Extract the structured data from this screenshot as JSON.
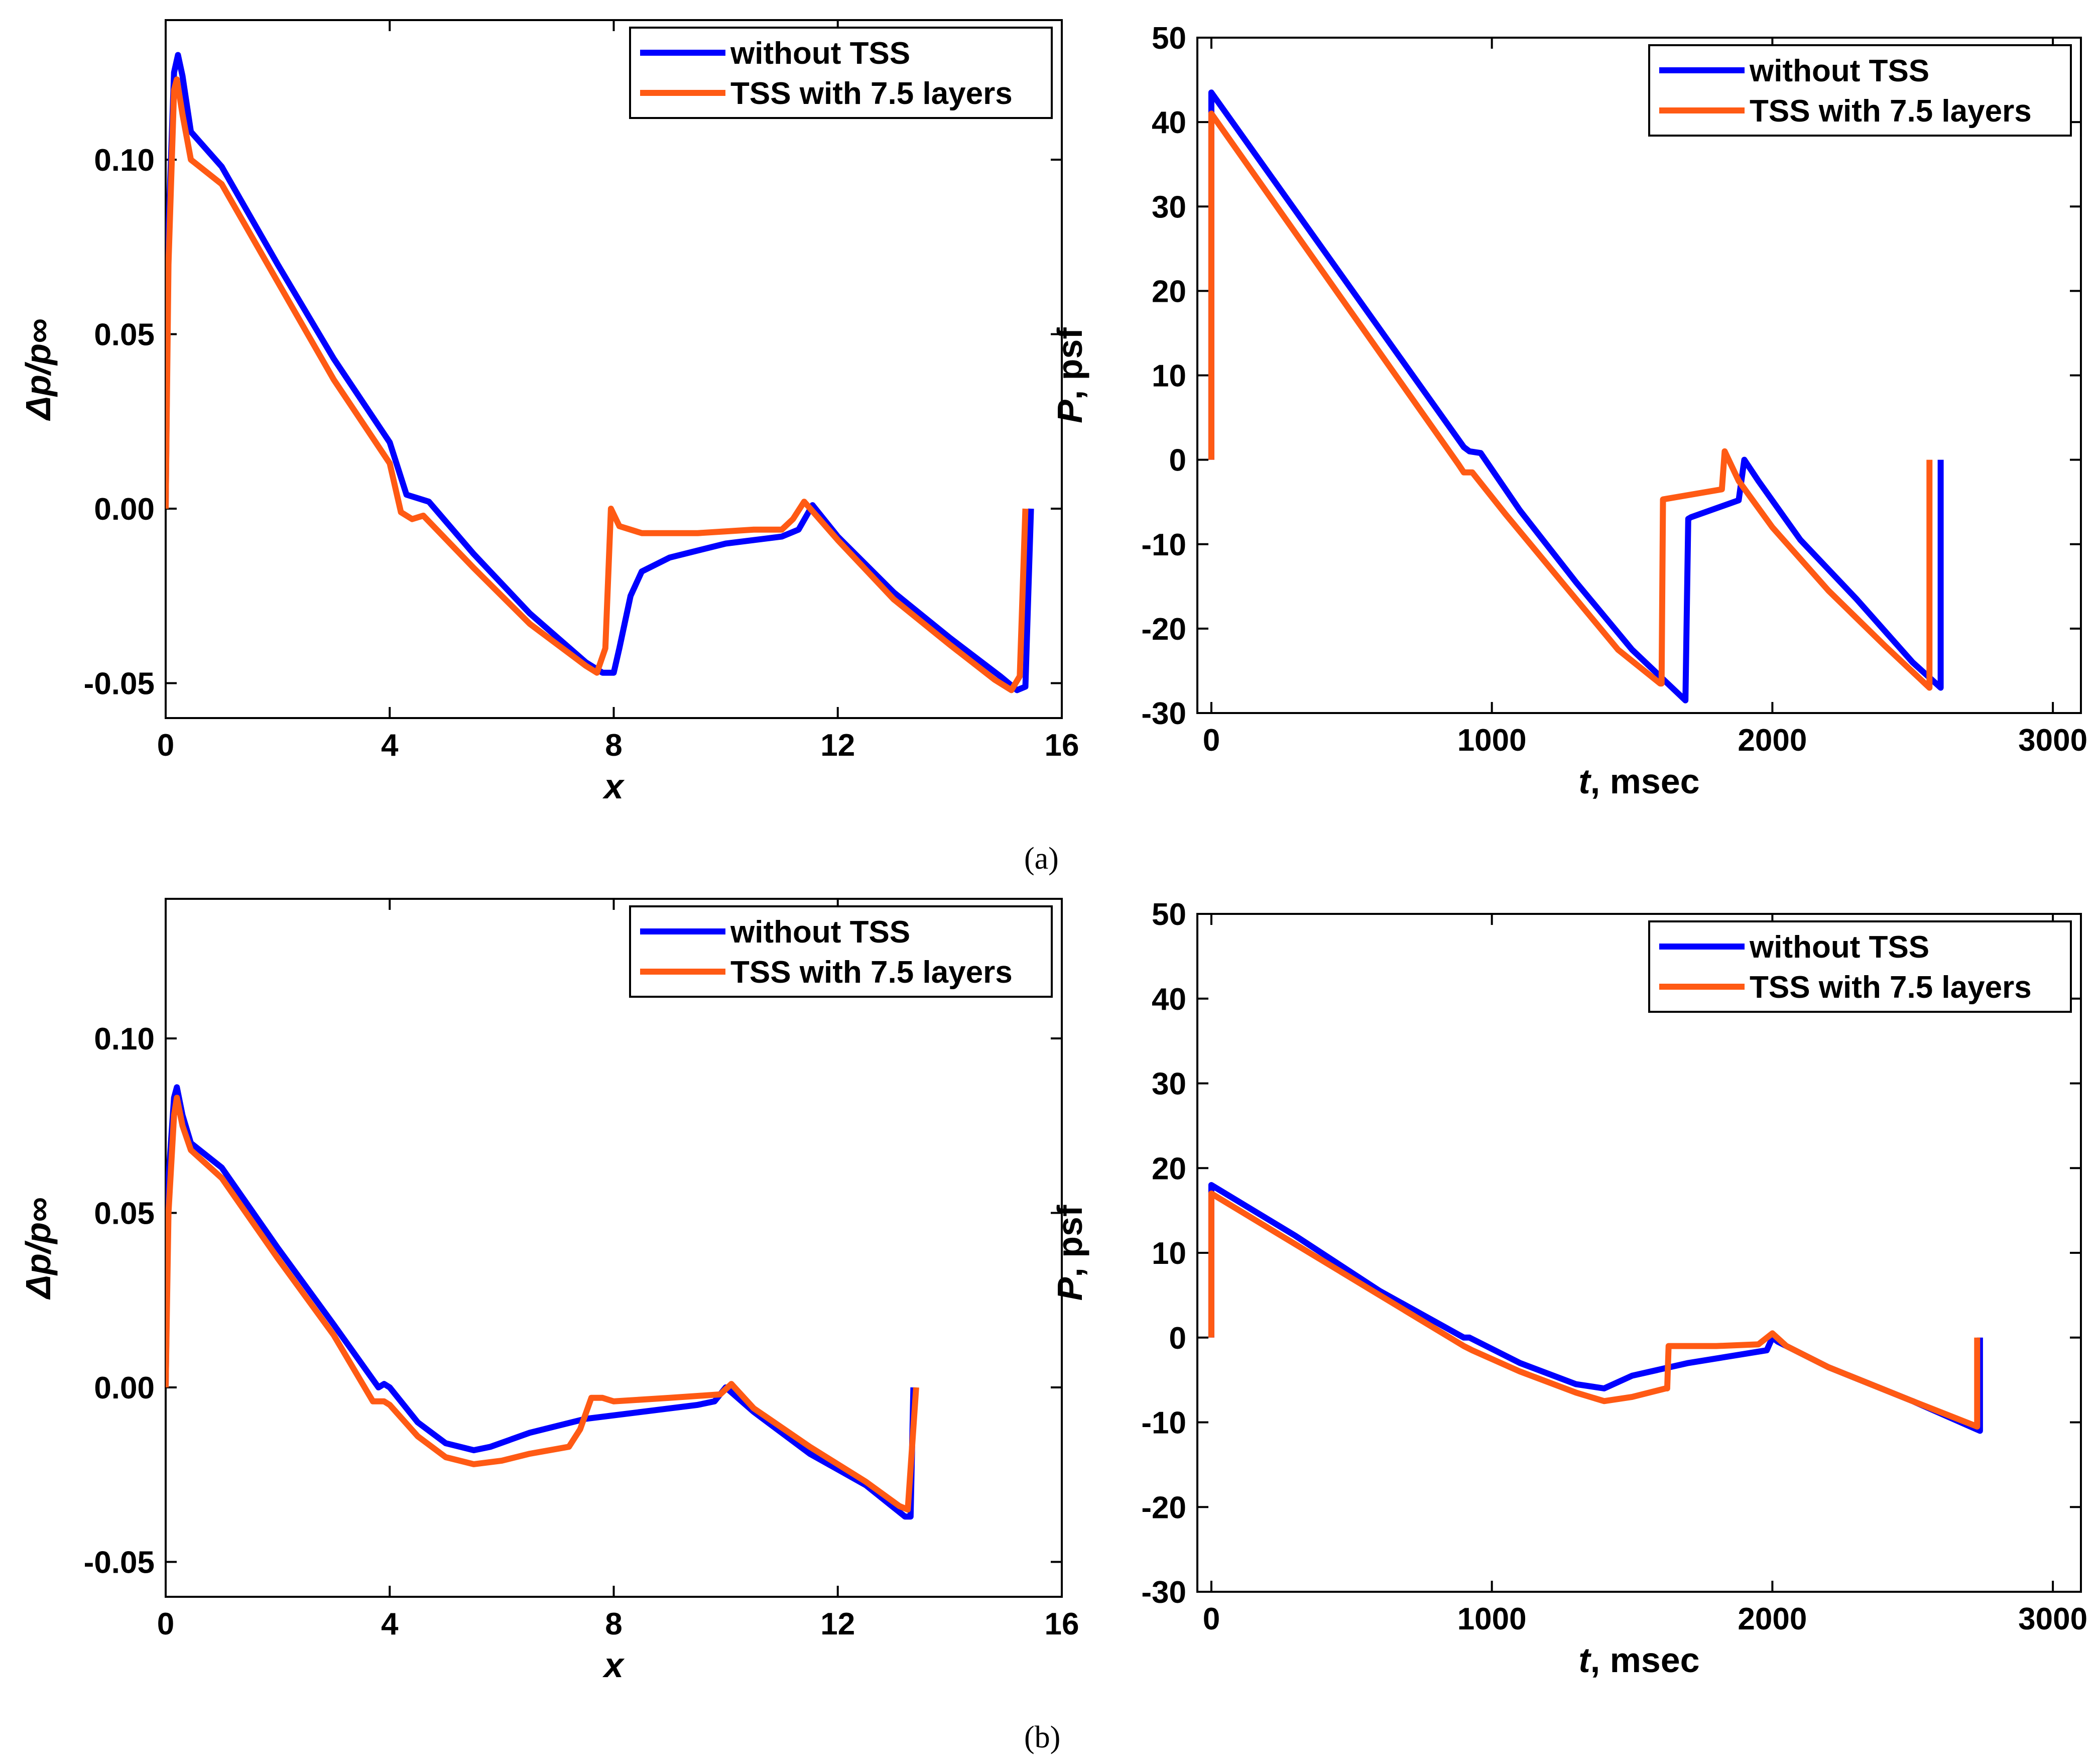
{
  "figure": {
    "panel_labels": [
      "(a)",
      "(b)"
    ]
  },
  "colors": {
    "series_1": "#0000FF",
    "series_2": "#FF5A14",
    "axis": "#000000",
    "background": "#FFFFFF"
  },
  "chart_data": [
    {
      "type": "line",
      "panel": "(a)",
      "xlabel": "x",
      "ylabel": "Δp/p∞",
      "xlim": [
        0,
        16
      ],
      "ylim": [
        -0.06,
        0.14
      ],
      "xticks": [
        0,
        4,
        8,
        12,
        16
      ],
      "yticks": [
        -0.05,
        0.0,
        0.05,
        0.1
      ],
      "xtick_labels": [
        "0",
        "4",
        "8",
        "12",
        "16"
      ],
      "ytick_labels": [
        "-0.05",
        "0.00",
        "0.05",
        "0.10"
      ],
      "grid": false,
      "legend_position": "top-right",
      "series": [
        {
          "name": "without TSS",
          "x": [
            0,
            0.05,
            0.15,
            0.22,
            0.3,
            0.45,
            1.0,
            2.0,
            3.0,
            4.0,
            4.3,
            4.5,
            4.7,
            5.5,
            6.5,
            7.5,
            7.8,
            8.0,
            8.1,
            8.3,
            8.5,
            9.0,
            10.0,
            11.0,
            11.3,
            11.55,
            12.0,
            13.0,
            14.0,
            14.9,
            15.2,
            15.35,
            15.45
          ],
          "y": [
            0,
            0.08,
            0.125,
            0.13,
            0.124,
            0.108,
            0.098,
            0.07,
            0.043,
            0.019,
            0.004,
            0.003,
            0.002,
            -0.013,
            -0.03,
            -0.044,
            -0.047,
            -0.047,
            -0.04,
            -0.025,
            -0.018,
            -0.014,
            -0.01,
            -0.008,
            -0.006,
            0.001,
            -0.008,
            -0.024,
            -0.037,
            -0.048,
            -0.052,
            -0.051,
            0
          ]
        },
        {
          "name": "TSS with 7.5 layers",
          "x": [
            0,
            0.05,
            0.15,
            0.2,
            0.3,
            0.45,
            1.0,
            2.0,
            3.0,
            4.0,
            4.2,
            4.4,
            4.6,
            5.5,
            6.5,
            7.5,
            7.7,
            7.85,
            7.95,
            8.1,
            8.5,
            9.5,
            10.5,
            11.0,
            11.2,
            11.4,
            12.0,
            13.0,
            14.0,
            14.8,
            15.1,
            15.25,
            15.35
          ],
          "y": [
            0,
            0.07,
            0.12,
            0.123,
            0.113,
            0.1,
            0.093,
            0.065,
            0.037,
            0.013,
            -0.001,
            -0.003,
            -0.002,
            -0.017,
            -0.033,
            -0.045,
            -0.047,
            -0.04,
            0,
            -0.005,
            -0.007,
            -0.007,
            -0.006,
            -0.006,
            -0.003,
            0.002,
            -0.009,
            -0.026,
            -0.039,
            -0.049,
            -0.052,
            -0.048,
            0
          ]
        }
      ]
    },
    {
      "type": "line",
      "panel": "(a)",
      "xlabel": "t, msec",
      "ylabel": "P, psf",
      "xlim": [
        -50,
        3100
      ],
      "ylim": [
        -30,
        50
      ],
      "xticks": [
        0,
        1000,
        2000,
        3000
      ],
      "yticks": [
        -30,
        -20,
        -10,
        0,
        10,
        20,
        30,
        40,
        50
      ],
      "xtick_labels": [
        "0",
        "1000",
        "2000",
        "3000"
      ],
      "ytick_labels": [
        "-30",
        "-20",
        "-10",
        "0",
        "10",
        "20",
        "30",
        "40",
        "50"
      ],
      "grid": false,
      "legend_position": "top-right",
      "series": [
        {
          "name": "without TSS",
          "x": [
            0,
            0,
            900,
            920,
            960,
            1100,
            1300,
            1500,
            1690,
            1700,
            1710,
            1880,
            1900,
            1950,
            2100,
            2300,
            2500,
            2600,
            2600
          ],
          "y": [
            0,
            43.5,
            1.5,
            1,
            0.8,
            -6,
            -14.5,
            -22.5,
            -28.5,
            -7,
            -6.8,
            -4.8,
            0,
            -2.5,
            -9.5,
            -16.5,
            -24,
            -27,
            0
          ]
        },
        {
          "name": "TSS with 7.5 layers",
          "x": [
            0,
            0,
            880,
            900,
            930,
            1050,
            1250,
            1450,
            1600,
            1605,
            1610,
            1820,
            1830,
            1880,
            2000,
            2200,
            2400,
            2560,
            2560
          ],
          "y": [
            0,
            41,
            -0.5,
            -1.5,
            -1.5,
            -6.5,
            -14.5,
            -22.5,
            -26.5,
            -26.5,
            -4.7,
            -3.5,
            1,
            -2.5,
            -8,
            -15.5,
            -22,
            -27,
            0
          ]
        }
      ]
    },
    {
      "type": "line",
      "panel": "(b)",
      "xlabel": "x",
      "ylabel": "Δp/p∞",
      "xlim": [
        0,
        16
      ],
      "ylim": [
        -0.06,
        0.14
      ],
      "xticks": [
        0,
        4,
        8,
        12,
        16
      ],
      "yticks": [
        -0.05,
        0.0,
        0.05,
        0.1
      ],
      "xtick_labels": [
        "0",
        "4",
        "8",
        "12",
        "16"
      ],
      "ytick_labels": [
        "-0.05",
        "0.00",
        "0.05",
        "0.10"
      ],
      "grid": false,
      "legend_position": "top-right",
      "series": [
        {
          "name": "without TSS",
          "x": [
            0,
            0.05,
            0.15,
            0.2,
            0.3,
            0.45,
            1.0,
            2.0,
            3.0,
            3.8,
            3.9,
            4.0,
            4.5,
            5.0,
            5.5,
            5.8,
            6.5,
            7.5,
            8.5,
            9.5,
            9.8,
            10.0,
            10.5,
            11.5,
            12.5,
            13.2,
            13.3,
            13.35
          ],
          "y": [
            0,
            0.06,
            0.083,
            0.086,
            0.078,
            0.07,
            0.063,
            0.04,
            0.018,
            0.0,
            0.001,
            0.0,
            -0.01,
            -0.016,
            -0.018,
            -0.017,
            -0.013,
            -0.009,
            -0.007,
            -0.005,
            -0.004,
            0,
            -0.007,
            -0.019,
            -0.028,
            -0.037,
            -0.037,
            0
          ]
        },
        {
          "name": "TSS with 7.5 layers",
          "x": [
            0,
            0.05,
            0.15,
            0.2,
            0.3,
            0.45,
            1.0,
            2.0,
            3.0,
            3.7,
            3.9,
            4.0,
            4.5,
            5.0,
            5.5,
            6.0,
            6.5,
            7.2,
            7.4,
            7.6,
            7.8,
            8.0,
            9.0,
            9.9,
            10.1,
            10.5,
            11.5,
            12.5,
            13.1,
            13.25,
            13.4
          ],
          "y": [
            0,
            0.05,
            0.078,
            0.083,
            0.075,
            0.068,
            0.06,
            0.037,
            0.015,
            -0.004,
            -0.004,
            -0.005,
            -0.014,
            -0.02,
            -0.022,
            -0.021,
            -0.019,
            -0.017,
            -0.012,
            -0.003,
            -0.003,
            -0.004,
            -0.003,
            -0.002,
            0.001,
            -0.006,
            -0.017,
            -0.027,
            -0.034,
            -0.035,
            0
          ]
        }
      ]
    },
    {
      "type": "line",
      "panel": "(b)",
      "xlabel": "t, msec",
      "ylabel": "P, psf",
      "xlim": [
        -50,
        3100
      ],
      "ylim": [
        -30,
        50
      ],
      "xticks": [
        0,
        1000,
        2000,
        3000
      ],
      "yticks": [
        -30,
        -20,
        -10,
        0,
        10,
        20,
        30,
        40,
        50
      ],
      "xtick_labels": [
        "0",
        "1000",
        "2000",
        "3000"
      ],
      "ytick_labels": [
        "-30",
        "-20",
        "-10",
        "0",
        "10",
        "20",
        "30",
        "40",
        "50"
      ],
      "grid": false,
      "legend_position": "top-right",
      "series": [
        {
          "name": "without TSS",
          "x": [
            0,
            0,
            300,
            600,
            900,
            920,
            950,
            1100,
            1300,
            1400,
            1500,
            1700,
            1980,
            2000,
            2020,
            2200,
            2500,
            2740,
            2740
          ],
          "y": [
            0,
            18,
            12,
            5.5,
            0,
            0,
            -0.5,
            -3,
            -5.5,
            -6,
            -4.5,
            -3,
            -1.5,
            0,
            -0.5,
            -3.5,
            -7.5,
            -11,
            0
          ]
        },
        {
          "name": "TSS with 7.5 layers",
          "x": [
            0,
            0,
            300,
            600,
            900,
            930,
            1100,
            1300,
            1400,
            1500,
            1620,
            1625,
            1630,
            1800,
            1950,
            2000,
            2050,
            2200,
            2500,
            2730,
            2730
          ],
          "y": [
            0,
            17,
            11,
            5,
            -1,
            -1.5,
            -4,
            -6.5,
            -7.5,
            -7,
            -6,
            -6,
            -1,
            -1,
            -0.8,
            0.5,
            -1,
            -3.5,
            -7.5,
            -10.5,
            0
          ]
        }
      ]
    }
  ]
}
